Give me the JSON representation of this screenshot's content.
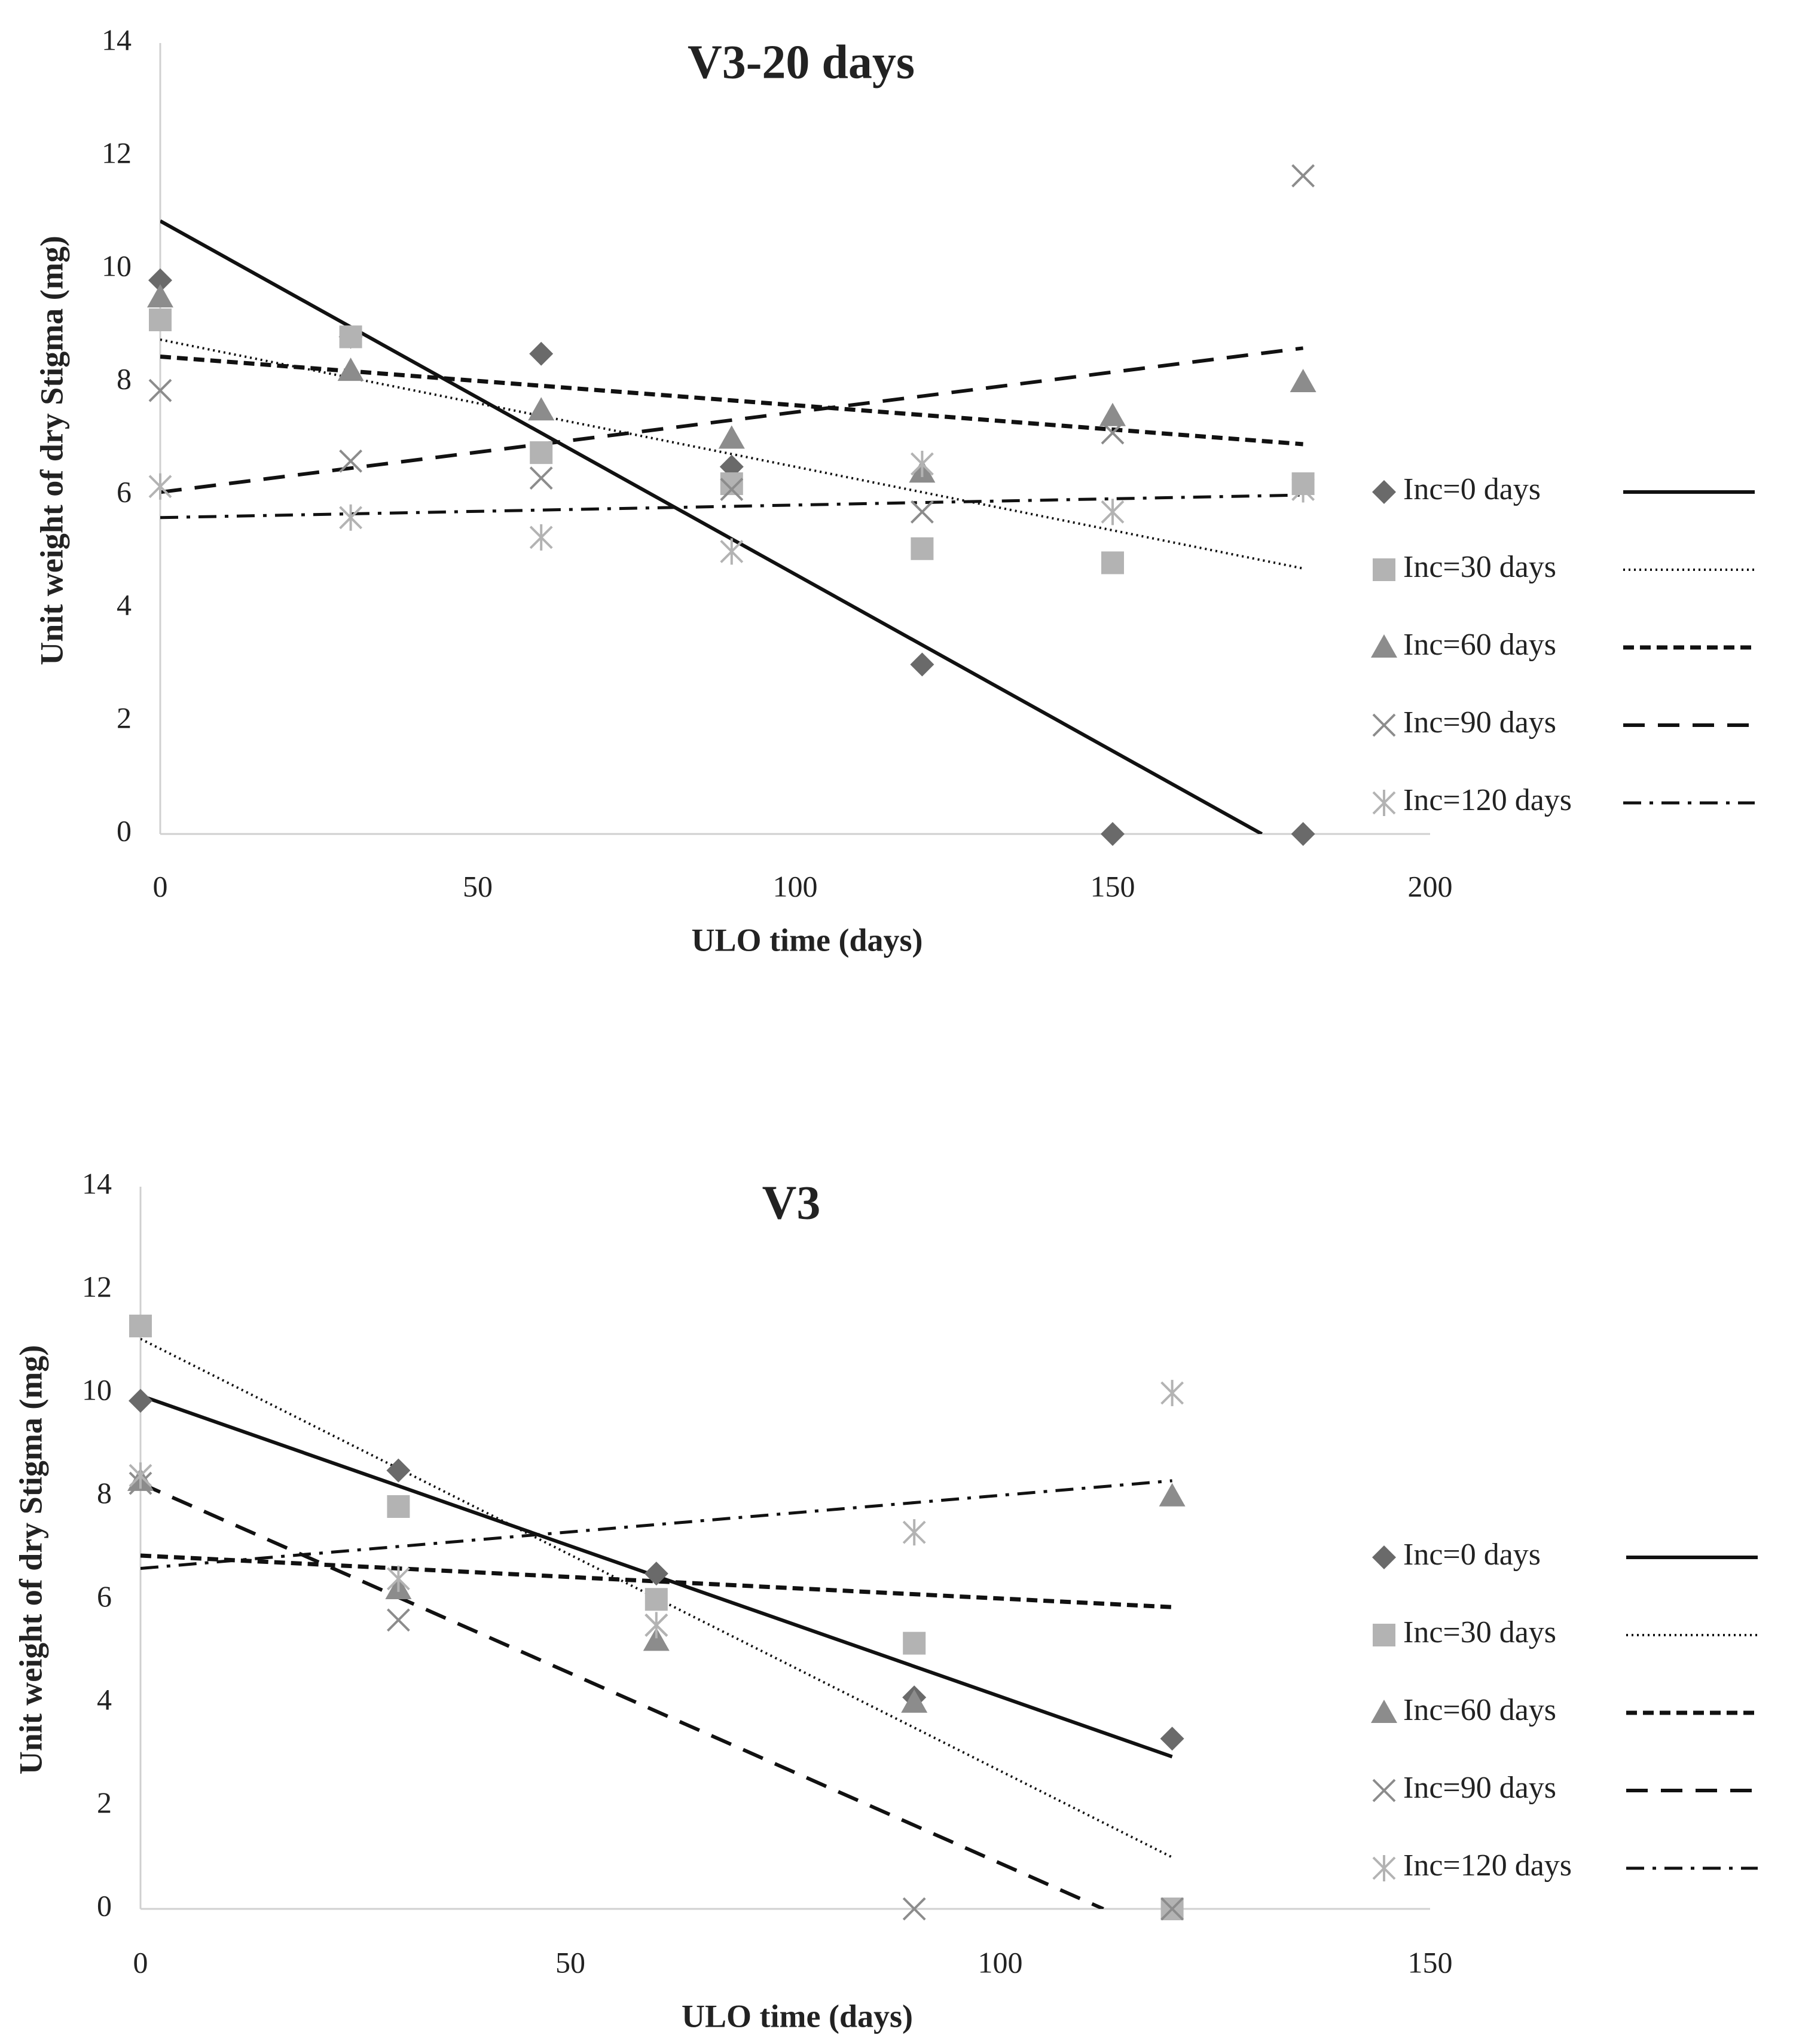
{
  "chart_data": [
    {
      "type": "scatter",
      "title": "V3-20 days",
      "xlabel": "ULO time (days)",
      "ylabel": "Unit weight of dry Stigma (mg)",
      "xlim": [
        0,
        200
      ],
      "ylim": [
        0,
        14
      ],
      "xticks": [
        0,
        50,
        100,
        150,
        200
      ],
      "yticks": [
        0,
        2,
        4,
        6,
        8,
        10,
        12,
        14
      ],
      "legend_position": "right",
      "series": [
        {
          "name": "Inc=0 days",
          "marker": "diamond",
          "color": "#6a6a6a",
          "line_style": "solid",
          "points": [
            [
              0,
              9.8
            ],
            [
              30,
              8.8
            ],
            [
              60,
              8.5
            ],
            [
              90,
              6.5
            ],
            [
              120,
              3.0
            ],
            [
              150,
              0.0
            ],
            [
              180,
              0.0
            ]
          ],
          "trendline": [
            [
              0,
              10.85
            ],
            [
              173.5,
              0.0
            ]
          ]
        },
        {
          "name": "Inc=30 days",
          "marker": "square",
          "color": "#b3b3b3",
          "line_style": "dotted",
          "points": [
            [
              0,
              9.1
            ],
            [
              30,
              8.8
            ],
            [
              60,
              6.75
            ],
            [
              90,
              6.2
            ],
            [
              120,
              5.05
            ],
            [
              150,
              4.8
            ],
            [
              180,
              6.2
            ]
          ],
          "trendline": [
            [
              0,
              8.75
            ],
            [
              180,
              4.7
            ]
          ]
        },
        {
          "name": "Inc=60 days",
          "marker": "triangle",
          "color": "#8c8c8c",
          "line_style": "short-dash",
          "points": [
            [
              0,
              9.5
            ],
            [
              30,
              8.2
            ],
            [
              60,
              7.5
            ],
            [
              90,
              7.0
            ],
            [
              120,
              6.4
            ],
            [
              150,
              7.4
            ],
            [
              180,
              8.0
            ]
          ],
          "trendline": [
            [
              0,
              8.45
            ],
            [
              180,
              6.9
            ]
          ]
        },
        {
          "name": "Inc=90 days",
          "marker": "x",
          "color": "#8c8c8c",
          "line_style": "long-dash",
          "points": [
            [
              0,
              7.85
            ],
            [
              30,
              6.6
            ],
            [
              60,
              6.3
            ],
            [
              90,
              6.1
            ],
            [
              120,
              5.7
            ],
            [
              150,
              7.1
            ],
            [
              180,
              11.65
            ]
          ],
          "trendline": [
            [
              0,
              6.05
            ],
            [
              180,
              8.6
            ]
          ]
        },
        {
          "name": "Inc=120 days",
          "marker": "star",
          "color": "#b3b3b3",
          "line_style": "dash-dot",
          "points": [
            [
              0,
              6.15
            ],
            [
              30,
              5.6
            ],
            [
              60,
              5.25
            ],
            [
              90,
              5.0
            ],
            [
              120,
              6.55
            ],
            [
              150,
              5.7
            ],
            [
              180,
              6.1
            ]
          ],
          "trendline": [
            [
              0,
              5.6
            ],
            [
              180,
              6.0
            ]
          ]
        }
      ]
    },
    {
      "type": "scatter",
      "title": "V3",
      "xlabel": "ULO time (days)",
      "ylabel": "Unit weight of dry Stigma (mg)",
      "xlim": [
        0,
        150
      ],
      "ylim": [
        0,
        14
      ],
      "xticks": [
        0,
        50,
        100,
        150
      ],
      "yticks": [
        0,
        2,
        4,
        6,
        8,
        10,
        12,
        14
      ],
      "legend_position": "right",
      "series": [
        {
          "name": "Inc=0 days",
          "marker": "diamond",
          "color": "#6a6a6a",
          "line_style": "solid",
          "points": [
            [
              0,
              9.85
            ],
            [
              30,
              8.5
            ],
            [
              60,
              6.5
            ],
            [
              90,
              4.1
            ],
            [
              120,
              3.3
            ]
          ],
          "trendline": [
            [
              0,
              9.95
            ],
            [
              120,
              2.95
            ]
          ]
        },
        {
          "name": "Inc=30 days",
          "marker": "square",
          "color": "#b3b3b3",
          "line_style": "dotted",
          "points": [
            [
              0,
              11.3
            ],
            [
              30,
              7.8
            ],
            [
              60,
              6.0
            ],
            [
              90,
              5.15
            ],
            [
              120,
              0.0
            ]
          ],
          "trendline": [
            [
              0,
              11.05
            ],
            [
              120,
              1.0
            ]
          ]
        },
        {
          "name": "Inc=60 days",
          "marker": "triangle",
          "color": "#8c8c8c",
          "line_style": "short-dash",
          "points": [
            [
              0,
              8.3
            ],
            [
              30,
              6.2
            ],
            [
              60,
              5.2
            ],
            [
              90,
              4.0
            ],
            [
              120,
              8.0
            ]
          ],
          "trendline": [
            [
              0,
              6.85
            ],
            [
              120,
              5.85
            ]
          ]
        },
        {
          "name": "Inc=90 days",
          "marker": "x",
          "color": "#8c8c8c",
          "line_style": "long-dash",
          "points": [
            [
              0,
              8.25
            ],
            [
              30,
              5.6
            ],
            [
              60,
              5.5
            ],
            [
              90,
              0.0
            ],
            [
              120,
              0.0
            ]
          ],
          "trendline": [
            [
              0,
              8.25
            ],
            [
              112,
              0.0
            ]
          ]
        },
        {
          "name": "Inc=120 days",
          "marker": "star",
          "color": "#b3b3b3",
          "line_style": "dash-dot",
          "points": [
            [
              0,
              8.4
            ],
            [
              30,
              6.4
            ],
            [
              60,
              5.5
            ],
            [
              90,
              7.3
            ],
            [
              120,
              10.0
            ]
          ],
          "trendline": [
            [
              0,
              6.6
            ],
            [
              120,
              8.3
            ]
          ]
        }
      ]
    }
  ]
}
